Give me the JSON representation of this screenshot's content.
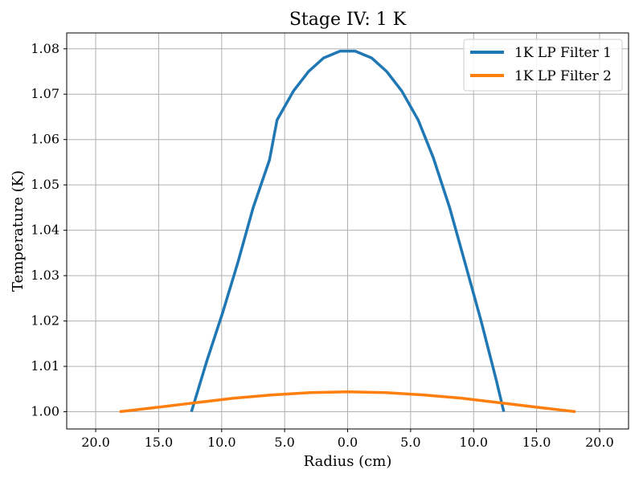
{
  "chart_data": {
    "type": "line",
    "title": "Stage IV: 1 K",
    "xlabel": "Radius (cm)",
    "ylabel": "Temperature (K)",
    "xlim": [
      -22.3,
      22.3
    ],
    "ylim": [
      0.9962,
      1.0835
    ],
    "x_axis_note": "tick labels show absolute radius",
    "x_ticks": [
      -20,
      -15,
      -10,
      -5,
      0,
      5,
      10,
      15,
      20
    ],
    "x_tick_labels": [
      "20.0",
      "15.0",
      "10.0",
      "5.0",
      "0.0",
      "5.0",
      "10.0",
      "15.0",
      "20.0"
    ],
    "y_ticks": [
      1.0,
      1.01,
      1.02,
      1.03,
      1.04,
      1.05,
      1.06,
      1.07,
      1.08
    ],
    "y_tick_labels": [
      "1.00",
      "1.01",
      "1.02",
      "1.03",
      "1.04",
      "1.05",
      "1.06",
      "1.07",
      "1.08"
    ],
    "grid": true,
    "legend_position": "top-right",
    "series": [
      {
        "name": "1K LP Filter 1",
        "color": "#1f77b4",
        "x": [
          -12.4,
          -11.2,
          -9.9,
          -8.7,
          -7.5,
          -6.2,
          -5.6,
          -4.3,
          -3.1,
          -1.9,
          -0.6,
          0.6,
          1.9,
          3.1,
          4.3,
          5.6,
          6.8,
          8.1,
          9.3,
          10.6,
          11.8,
          12.4
        ],
        "y": [
          1.0,
          1.011,
          1.022,
          1.033,
          1.045,
          1.0555,
          1.0643,
          1.0707,
          1.075,
          1.078,
          1.0795,
          1.0795,
          1.078,
          1.075,
          1.0707,
          1.0643,
          1.056,
          1.045,
          1.033,
          1.02,
          1.007,
          1.0
        ]
      },
      {
        "name": "1K LP Filter 2",
        "color": "#ff7f0e",
        "x": [
          -18.1,
          -15.0,
          -12.0,
          -9.0,
          -6.0,
          -3.0,
          0.0,
          3.0,
          6.0,
          9.0,
          12.0,
          15.0,
          18.1
        ],
        "y": [
          1.0,
          1.001,
          1.002,
          1.003,
          1.0037,
          1.0042,
          1.0044,
          1.0042,
          1.0037,
          1.003,
          1.002,
          1.001,
          1.0
        ]
      }
    ]
  }
}
